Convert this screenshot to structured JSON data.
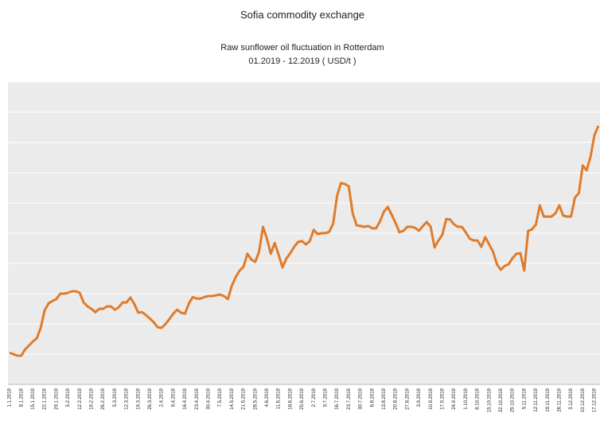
{
  "chart_data": {
    "type": "line",
    "title": "Sofia commodity exchange",
    "subtitle": [
      "Raw sunflower oil fluctuation  in Rotterdam",
      "01.2019 - 12.2019 ( USD/t )"
    ],
    "categories": [
      "1.1.2019",
      null,
      null,
      "8.1.2019",
      null,
      null,
      "15.1.2019",
      null,
      null,
      "22.1.2019",
      null,
      null,
      "29.1.2019",
      null,
      null,
      "5.2.2019",
      null,
      null,
      "12.2.2019",
      null,
      null,
      "19.2.2019",
      null,
      null,
      "26.2.2019",
      null,
      null,
      "5.3.2019",
      null,
      null,
      "12.3.2019",
      null,
      null,
      "19.3.2019",
      null,
      null,
      "26.3.2019",
      null,
      null,
      "2.4.2019",
      null,
      null,
      "9.4.2019",
      null,
      null,
      "16.4.2019",
      null,
      null,
      "23.4.2019",
      null,
      null,
      "30.4.2019",
      null,
      null,
      "7.5.2019",
      null,
      null,
      "14.5.2019",
      null,
      null,
      "21.5.2019",
      null,
      null,
      "28.5.2019",
      null,
      null,
      "4.6.2019",
      null,
      null,
      "11.6.2019",
      null,
      null,
      "18.6.2019",
      null,
      null,
      "25.6.2019",
      null,
      null,
      "2.7.2019",
      null,
      null,
      "9.7.2019",
      null,
      null,
      "16.7.2019",
      null,
      null,
      "23.7.2019",
      null,
      null,
      "30.7.2019",
      null,
      null,
      "6.8.2019",
      null,
      null,
      "13.8.2019",
      null,
      null,
      "20.8.2019",
      null,
      null,
      "27.8.2019",
      null,
      null,
      "3.9.2019",
      null,
      null,
      "10.9.2019",
      null,
      null,
      "17.9.2019",
      null,
      null,
      "24.9.2019",
      null,
      null,
      "1.10.2019",
      null,
      null,
      "8.10.2019",
      null,
      null,
      "15.10.2019",
      null,
      null,
      "22.10.2019",
      null,
      null,
      "29.10.2019",
      null,
      null,
      "5.11.2019",
      null,
      null,
      "12.11.2019",
      null,
      null,
      "19.11.2019",
      null,
      null,
      "26.11.2019",
      null,
      null,
      "3.12.2019",
      null,
      null,
      "10.12.2019",
      null,
      null,
      "17.12.2019",
      null
    ],
    "series": [
      {
        "name": "Raw sunflower oil",
        "color": "#e07b2a",
        "values": [
          1.05,
          1.0,
          0.95,
          0.95,
          1.16,
          1.29,
          1.42,
          1.53,
          1.87,
          2.45,
          2.68,
          2.76,
          2.82,
          3.0,
          3.0,
          3.03,
          3.08,
          3.08,
          3.03,
          2.71,
          2.58,
          2.5,
          2.39,
          2.5,
          2.5,
          2.58,
          2.58,
          2.47,
          2.55,
          2.71,
          2.71,
          2.87,
          2.66,
          2.37,
          2.39,
          2.29,
          2.18,
          2.05,
          1.89,
          1.87,
          2.0,
          2.16,
          2.34,
          2.47,
          2.37,
          2.34,
          2.68,
          2.89,
          2.84,
          2.84,
          2.89,
          2.92,
          2.92,
          2.95,
          2.97,
          2.92,
          2.82,
          3.26,
          3.55,
          3.76,
          3.89,
          4.32,
          4.13,
          4.05,
          4.39,
          5.21,
          4.82,
          4.32,
          4.68,
          4.29,
          3.87,
          4.16,
          4.34,
          4.55,
          4.71,
          4.74,
          4.63,
          4.74,
          5.11,
          4.97,
          5.0,
          5.0,
          5.05,
          5.32,
          6.24,
          6.66,
          6.63,
          6.55,
          5.66,
          5.26,
          5.24,
          5.21,
          5.24,
          5.16,
          5.16,
          5.39,
          5.71,
          5.87,
          5.61,
          5.34,
          5.03,
          5.08,
          5.21,
          5.21,
          5.18,
          5.08,
          5.24,
          5.37,
          5.21,
          4.53,
          4.76,
          4.95,
          5.47,
          5.45,
          5.29,
          5.21,
          5.21,
          5.03,
          4.82,
          4.76,
          4.76,
          4.55,
          4.87,
          4.63,
          4.39,
          3.97,
          3.79,
          3.92,
          3.97,
          4.18,
          4.32,
          4.34,
          3.76,
          5.08,
          5.13,
          5.29,
          5.92,
          5.55,
          5.55,
          5.55,
          5.66,
          5.92,
          5.58,
          5.55,
          5.55,
          6.18,
          6.32,
          7.24,
          7.08,
          7.53,
          8.24,
          8.55
        ]
      }
    ],
    "ylim": [
      0,
      10
    ],
    "yticks": [
      0,
      1,
      2,
      3,
      4,
      5,
      6,
      7,
      8,
      9,
      10
    ],
    "grid": true
  }
}
